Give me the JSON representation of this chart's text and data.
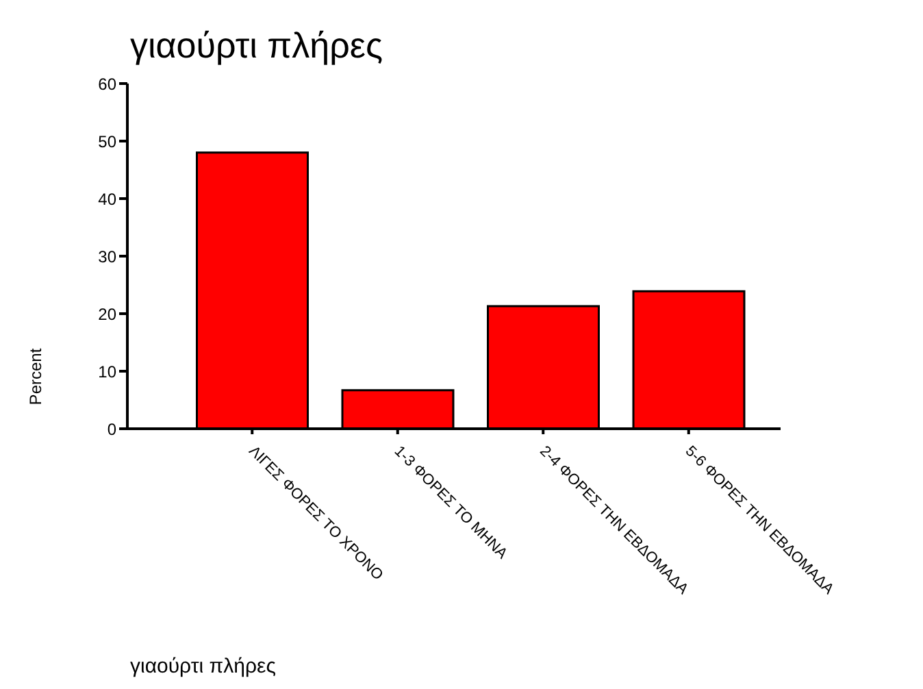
{
  "chart_data": {
    "type": "bar",
    "title": "γιαούρτι πλήρες",
    "xlabel": "γιαούρτι πλήρες",
    "ylabel": "Percent",
    "categories": [
      "ΛΙΓΕΣ ΦΟΡΕΣ ΤΟ ΧΡΟΝΟ",
      "1-3 ΦΟΡΕΣ ΤΟ ΜΗΝΑ",
      "2-4 ΦΟΡΕΣ ΤΗΝ ΕΒΔΟΜΑΔΑ",
      "5-6 ΦΟΡΕΣ ΤΗΝ ΕΒΔΟΜΑΔΑ"
    ],
    "values": [
      48,
      6.7,
      21.3,
      23.9
    ],
    "color": "#ff0000",
    "ylim": [
      0,
      60
    ],
    "yticks": [
      0,
      10,
      20,
      30,
      40,
      50,
      60
    ],
    "grid": false,
    "legend": false
  }
}
